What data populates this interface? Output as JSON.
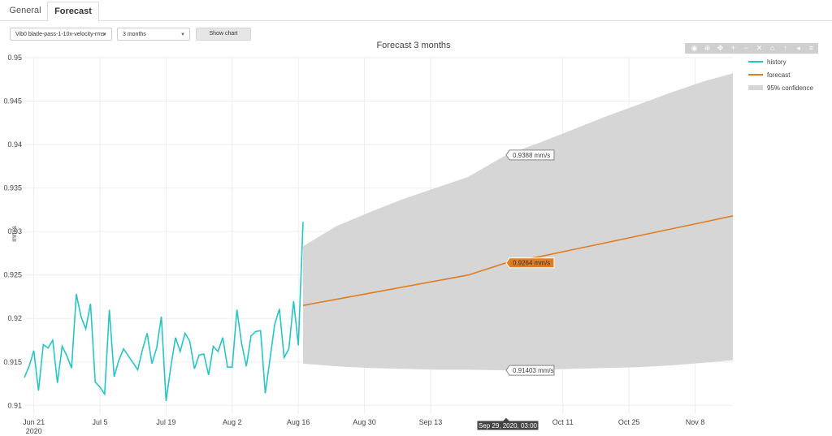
{
  "tabs": [
    {
      "label": "General"
    },
    {
      "label": "Forecast"
    }
  ],
  "controls": {
    "parameter": "Vib0 blade-pass-1-10x-velocity-rms",
    "period": "3 months",
    "show_button": "Show chart"
  },
  "modebar": {
    "icons": [
      "camera-icon",
      "zoom-icon",
      "pan-icon",
      "zoom-in-icon",
      "zoom-out-icon",
      "autoscale-icon",
      "home-icon",
      "spike-lines-icon",
      "hover-closest-icon",
      "hover-compare-icon"
    ]
  },
  "chart_data": {
    "type": "line",
    "title": "Forecast 3 months",
    "ylabel": "mm/s",
    "xlabel": "",
    "x_range": [
      "2020-06-19",
      "2020-11-16"
    ],
    "ylim": [
      0.909,
      0.95
    ],
    "grid": true,
    "legend_position": "right",
    "x_ticks": [
      {
        "date": "2020-06-21",
        "label": "Jun 21",
        "sublabel": "2020"
      },
      {
        "date": "2020-07-05",
        "label": "Jul 5"
      },
      {
        "date": "2020-07-19",
        "label": "Jul 19"
      },
      {
        "date": "2020-08-02",
        "label": "Aug 2"
      },
      {
        "date": "2020-08-16",
        "label": "Aug 16"
      },
      {
        "date": "2020-08-30",
        "label": "Aug 30"
      },
      {
        "date": "2020-09-13",
        "label": "Sep 13"
      },
      {
        "date": "2020-10-11",
        "label": "Oct 11"
      },
      {
        "date": "2020-10-25",
        "label": "Oct 25"
      },
      {
        "date": "2020-11-08",
        "label": "Nov 8"
      }
    ],
    "y_ticks": [
      0.91,
      0.915,
      0.92,
      0.925,
      0.93,
      0.935,
      0.94,
      0.945,
      0.95
    ],
    "series": [
      {
        "name": "history",
        "color": "#26c6c6",
        "x": [
          "2020-06-19",
          "2020-06-20",
          "2020-06-21",
          "2020-06-22",
          "2020-06-23",
          "2020-06-24",
          "2020-06-25",
          "2020-06-26",
          "2020-06-27",
          "2020-06-28",
          "2020-06-29",
          "2020-06-30",
          "2020-07-01",
          "2020-07-02",
          "2020-07-03",
          "2020-07-04",
          "2020-07-05",
          "2020-07-06",
          "2020-07-07",
          "2020-07-08",
          "2020-07-09",
          "2020-07-10",
          "2020-07-11",
          "2020-07-12",
          "2020-07-13",
          "2020-07-14",
          "2020-07-15",
          "2020-07-16",
          "2020-07-17",
          "2020-07-18",
          "2020-07-19",
          "2020-07-20",
          "2020-07-21",
          "2020-07-22",
          "2020-07-23",
          "2020-07-24",
          "2020-07-25",
          "2020-07-26",
          "2020-07-27",
          "2020-07-28",
          "2020-07-29",
          "2020-07-30",
          "2020-07-31",
          "2020-08-01",
          "2020-08-02",
          "2020-08-03",
          "2020-08-04",
          "2020-08-05",
          "2020-08-06",
          "2020-08-07",
          "2020-08-08",
          "2020-08-09",
          "2020-08-10",
          "2020-08-11",
          "2020-08-12",
          "2020-08-13",
          "2020-08-14",
          "2020-08-15",
          "2020-08-16",
          "2020-08-17"
        ],
        "y": [
          0.9132,
          0.9145,
          0.9163,
          0.9117,
          0.917,
          0.9166,
          0.9175,
          0.9126,
          0.9168,
          0.9157,
          0.9143,
          0.9228,
          0.9202,
          0.9188,
          0.9217,
          0.9127,
          0.9121,
          0.9113,
          0.921,
          0.9133,
          0.9152,
          0.9165,
          0.9157,
          0.9149,
          0.9141,
          0.9164,
          0.9183,
          0.9148,
          0.9166,
          0.9202,
          0.9105,
          0.9144,
          0.9178,
          0.9162,
          0.9183,
          0.9174,
          0.9142,
          0.9158,
          0.9159,
          0.9135,
          0.9168,
          0.9162,
          0.9178,
          0.9144,
          0.9144,
          0.921,
          0.9171,
          0.9145,
          0.918,
          0.9185,
          0.9186,
          0.9114,
          0.9153,
          0.9193,
          0.9211,
          0.9155,
          0.9165,
          0.922,
          0.9169,
          0.9311
        ]
      },
      {
        "name": "forecast",
        "color": "#e07d22",
        "x": [
          "2020-08-17",
          "2020-08-24",
          "2020-08-31",
          "2020-09-07",
          "2020-09-14",
          "2020-09-21",
          "2020-09-29",
          "2020-10-06",
          "2020-10-13",
          "2020-10-20",
          "2020-10-27",
          "2020-11-03",
          "2020-11-10",
          "2020-11-16"
        ],
        "y": [
          0.9215,
          0.9222,
          0.9229,
          0.9236,
          0.9243,
          0.925,
          0.9264,
          0.9271,
          0.9279,
          0.9287,
          0.9295,
          0.9303,
          0.9311,
          0.9318
        ]
      },
      {
        "name": "95% confidence",
        "color": "#d6d6d6",
        "x": [
          "2020-08-17",
          "2020-08-24",
          "2020-08-31",
          "2020-09-07",
          "2020-09-14",
          "2020-09-21",
          "2020-09-29",
          "2020-10-06",
          "2020-10-13",
          "2020-10-20",
          "2020-10-27",
          "2020-11-03",
          "2020-11-10",
          "2020-11-16"
        ],
        "upper": [
          0.9283,
          0.9306,
          0.9322,
          0.9337,
          0.935,
          0.9363,
          0.9388,
          0.9402,
          0.9417,
          0.9432,
          0.9446,
          0.946,
          0.9473,
          0.9482
        ],
        "lower": [
          0.9148,
          0.9145,
          0.9143,
          0.9142,
          0.9141,
          0.9141,
          0.91403,
          0.9141,
          0.9142,
          0.9143,
          0.9144,
          0.9146,
          0.9149,
          0.9152
        ]
      }
    ],
    "hover": {
      "x_label": "Sep 29, 2020, 03:00",
      "upper_label": "0.9388 mm/s",
      "forecast_label": "0.9264 mm/s",
      "lower_label": "0.91403 mm/s"
    }
  }
}
